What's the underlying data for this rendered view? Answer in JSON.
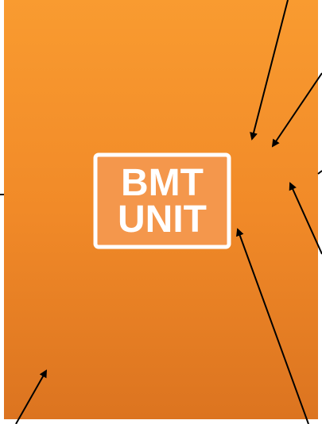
{
  "label": {
    "lines": [
      "BMT",
      "UNIT"
    ]
  }
}
